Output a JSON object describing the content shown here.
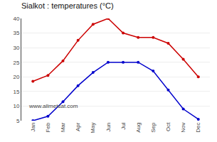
{
  "chart_data": {
    "type": "line",
    "title": "Sialkot : temperatures (°C)",
    "categories": [
      "Jan",
      "Feb",
      "Mar",
      "Apr",
      "May",
      "Jun",
      "Jul",
      "Aug",
      "Sep",
      "Oct",
      "Nov",
      "Dec"
    ],
    "series": [
      {
        "color": "#cc0000",
        "values": [
          18.5,
          20.5,
          25.5,
          32.5,
          38.0,
          40.0,
          35.0,
          33.5,
          33.5,
          31.5,
          26.0,
          20.0
        ]
      },
      {
        "color": "#0000cc",
        "values": [
          5.0,
          6.5,
          11.5,
          17.0,
          21.5,
          25.0,
          25.0,
          25.0,
          22.0,
          15.5,
          9.0,
          5.5
        ]
      }
    ],
    "ylim": [
      5,
      40
    ],
    "yticks": [
      5,
      10,
      15,
      20,
      25,
      30,
      35,
      40
    ],
    "grid": true,
    "marker": "circle",
    "annotations": [
      "www.allmetsat.com"
    ]
  }
}
